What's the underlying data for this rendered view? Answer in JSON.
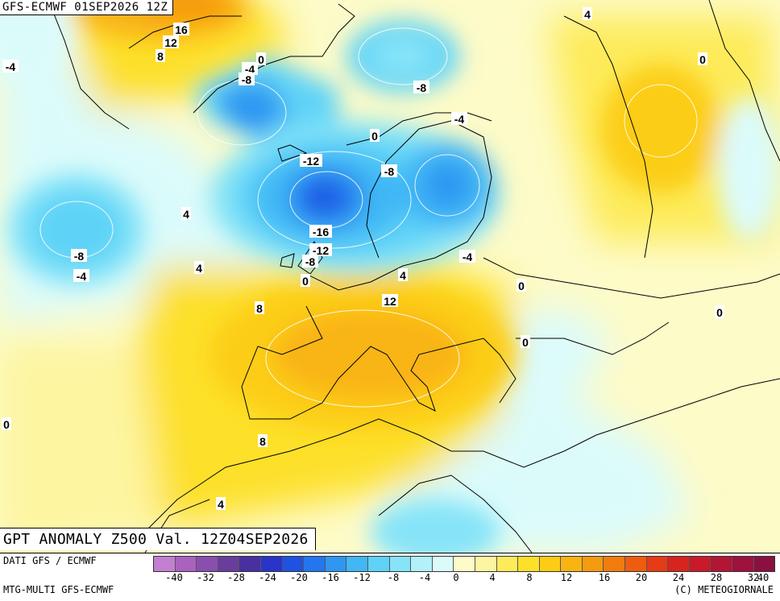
{
  "header": {
    "title": "GFS-ECMWF 01SEP2026 12Z"
  },
  "subtitle": "GPT ANOMALY Z500 Val. 12Z04SEP2026",
  "footer": {
    "source": "DATI GFS / ECMWF",
    "model": "MTG-MULTI GFS-ECMWF",
    "credit": "(C) METEOGIORNALE"
  },
  "legend": {
    "colors": [
      "#c47fd0",
      "#a962be",
      "#8a4fae",
      "#6a3d9c",
      "#4830a0",
      "#2a34c8",
      "#1f52e0",
      "#2476ee",
      "#2f97f2",
      "#41b7f5",
      "#5ed3f7",
      "#86e4f8",
      "#b2f1fa",
      "#dbfbfb",
      "#fdfbc8",
      "#fdf5a0",
      "#fdeb5a",
      "#fde02a",
      "#fccd14",
      "#f9b412",
      "#f69a10",
      "#f37c0e",
      "#ee5c10",
      "#e53b16",
      "#d8241e",
      "#c81a2a",
      "#b31535",
      "#9e123d",
      "#8a1040"
    ],
    "ticks": [
      "-40",
      "-32",
      "-28",
      "-24",
      "-20",
      "-16",
      "-12",
      "-8",
      "-4",
      "0",
      "4",
      "8",
      "12",
      "16",
      "20",
      "24",
      "28",
      "32",
      "40"
    ]
  },
  "contour_labels": [
    {
      "text": "16"
    },
    {
      "text": "12"
    },
    {
      "text": "8"
    },
    {
      "text": "-4"
    },
    {
      "text": "0"
    },
    {
      "text": "-4"
    },
    {
      "text": "-8"
    },
    {
      "text": "-8"
    },
    {
      "text": "4"
    },
    {
      "text": "0"
    },
    {
      "text": "-4"
    },
    {
      "text": "0"
    },
    {
      "text": "-12"
    },
    {
      "text": "-8"
    },
    {
      "text": "4"
    },
    {
      "text": "-8"
    },
    {
      "text": "-4"
    },
    {
      "text": "-16"
    },
    {
      "text": "-12"
    },
    {
      "text": "-8"
    },
    {
      "text": "4"
    },
    {
      "text": "0"
    },
    {
      "text": "-4"
    },
    {
      "text": "4"
    },
    {
      "text": "0"
    },
    {
      "text": "8"
    },
    {
      "text": "12"
    },
    {
      "text": "0"
    },
    {
      "text": "0"
    },
    {
      "text": "0"
    },
    {
      "text": "8"
    },
    {
      "text": "4"
    }
  ]
}
